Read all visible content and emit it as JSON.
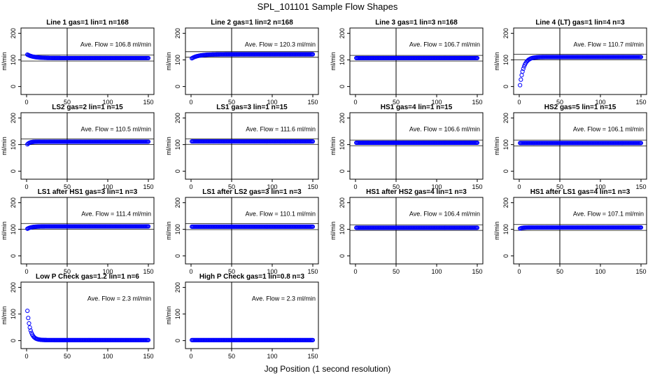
{
  "figure": {
    "title": "SPL_101101  Sample Flow Shapes",
    "xlabel": "Jog Position (1 second resolution)"
  },
  "chart_data": [
    {
      "type": "scatter",
      "title": "Line 1 gas=1 lin=1 n=168",
      "ylabel": "ml/min",
      "xlim": [
        0,
        150
      ],
      "ylim": [
        -30,
        220
      ],
      "xticks": [
        0,
        50,
        100,
        150
      ],
      "yticks": [
        0,
        100,
        200
      ],
      "vline": 50,
      "hlines": [
        96,
        118
      ],
      "annotation": "Ave. Flow =  106.8  ml/min",
      "shape": {
        "kind": "decay",
        "start": 120,
        "level": 107,
        "rate": 0.13
      }
    },
    {
      "type": "scatter",
      "title": "Line 2 gas=1 lin=2 n=168",
      "ylabel": "ml/min",
      "xlim": [
        0,
        150
      ],
      "ylim": [
        -30,
        220
      ],
      "xticks": [
        0,
        50,
        100,
        150
      ],
      "yticks": [
        0,
        100,
        200
      ],
      "vline": 50,
      "hlines": [
        110,
        131
      ],
      "annotation": "Ave. Flow =  120.3  ml/min",
      "shape": {
        "kind": "decay",
        "start": 106,
        "level": 121,
        "rate": 0.12
      }
    },
    {
      "type": "scatter",
      "title": "Line 3 gas=1 lin=3 n=168",
      "ylabel": "ml/min",
      "xlim": [
        0,
        150
      ],
      "ylim": [
        -30,
        220
      ],
      "xticks": [
        0,
        50,
        100,
        150
      ],
      "yticks": [
        0,
        100,
        200
      ],
      "vline": 50,
      "hlines": [
        96,
        117
      ],
      "annotation": "Ave. Flow =  106.7  ml/min",
      "shape": {
        "kind": "flat",
        "level": 107
      }
    },
    {
      "type": "scatter",
      "title": "Line 4 (LT) gas=1 lin=4 n=3",
      "ylabel": "ml/min",
      "xlim": [
        0,
        150
      ],
      "ylim": [
        -30,
        220
      ],
      "xticks": [
        0,
        50,
        100,
        150
      ],
      "yticks": [
        0,
        100,
        200
      ],
      "vline": 50,
      "hlines": [
        100,
        121
      ],
      "annotation": "Ave. Flow =  110.7  ml/min",
      "shape": {
        "kind": "decay",
        "start": 5,
        "level": 111,
        "rate": 0.22
      }
    },
    {
      "type": "scatter",
      "title": "LS2 gas=2 lin=1 n=15",
      "ylabel": "ml/min",
      "xlim": [
        0,
        150
      ],
      "ylim": [
        -30,
        220
      ],
      "xticks": [
        0,
        50,
        100,
        150
      ],
      "yticks": [
        0,
        100,
        200
      ],
      "vline": 50,
      "hlines": [
        100,
        121
      ],
      "annotation": "Ave. Flow =  110.5  ml/min",
      "shape": {
        "kind": "decay",
        "start": 101,
        "level": 111,
        "rate": 0.35
      }
    },
    {
      "type": "scatter",
      "title": "LS1 gas=3 lin=1 n=15",
      "ylabel": "ml/min",
      "xlim": [
        0,
        150
      ],
      "ylim": [
        -30,
        220
      ],
      "xticks": [
        0,
        50,
        100,
        150
      ],
      "yticks": [
        0,
        100,
        200
      ],
      "vline": 50,
      "hlines": [
        101,
        122
      ],
      "annotation": "Ave. Flow =  111.6  ml/min",
      "shape": {
        "kind": "flat",
        "level": 112
      }
    },
    {
      "type": "scatter",
      "title": "HS1 gas=4 lin=1 n=15",
      "ylabel": "ml/min",
      "xlim": [
        0,
        150
      ],
      "ylim": [
        -30,
        220
      ],
      "xticks": [
        0,
        50,
        100,
        150
      ],
      "yticks": [
        0,
        100,
        200
      ],
      "vline": 50,
      "hlines": [
        96,
        117
      ],
      "annotation": "Ave. Flow =  106.6  ml/min",
      "shape": {
        "kind": "flat",
        "level": 107
      }
    },
    {
      "type": "scatter",
      "title": "HS2 gas=5 lin=1 n=15",
      "ylabel": "ml/min",
      "xlim": [
        0,
        150
      ],
      "ylim": [
        -30,
        220
      ],
      "xticks": [
        0,
        50,
        100,
        150
      ],
      "yticks": [
        0,
        100,
        200
      ],
      "vline": 50,
      "hlines": [
        95,
        117
      ],
      "annotation": "Ave. Flow =  106.1  ml/min",
      "shape": {
        "kind": "flat",
        "level": 106
      }
    },
    {
      "type": "scatter",
      "title": "LS1 after HS1 gas=3 lin=1 n=3",
      "ylabel": "ml/min",
      "xlim": [
        0,
        150
      ],
      "ylim": [
        -30,
        220
      ],
      "xticks": [
        0,
        50,
        100,
        150
      ],
      "yticks": [
        0,
        100,
        200
      ],
      "vline": 50,
      "hlines": [
        100,
        122
      ],
      "annotation": "Ave. Flow =  111.4  ml/min",
      "shape": {
        "kind": "decay",
        "start": 102,
        "level": 111,
        "rate": 0.2
      }
    },
    {
      "type": "scatter",
      "title": "LS1 after LS2 gas=3 lin=1 n=3",
      "ylabel": "ml/min",
      "xlim": [
        0,
        150
      ],
      "ylim": [
        -30,
        220
      ],
      "xticks": [
        0,
        50,
        100,
        150
      ],
      "yticks": [
        0,
        100,
        200
      ],
      "vline": 50,
      "hlines": [
        99,
        121
      ],
      "annotation": "Ave. Flow =  110.1  ml/min",
      "shape": {
        "kind": "flat",
        "level": 110
      }
    },
    {
      "type": "scatter",
      "title": "HS1 after HS2 gas=4 lin=1 n=3",
      "ylabel": "ml/min",
      "xlim": [
        0,
        150
      ],
      "ylim": [
        -30,
        220
      ],
      "xticks": [
        0,
        50,
        100,
        150
      ],
      "yticks": [
        0,
        100,
        200
      ],
      "vline": 50,
      "hlines": [
        96,
        117
      ],
      "annotation": "Ave. Flow =  106.4  ml/min",
      "shape": {
        "kind": "flat",
        "level": 106
      }
    },
    {
      "type": "scatter",
      "title": "HS1 after LS1 gas=4 lin=1 n=3",
      "ylabel": "ml/min",
      "xlim": [
        0,
        150
      ],
      "ylim": [
        -30,
        220
      ],
      "xticks": [
        0,
        50,
        100,
        150
      ],
      "yticks": [
        0,
        100,
        200
      ],
      "vline": 50,
      "hlines": [
        96,
        118
      ],
      "annotation": "Ave. Flow =  107.1  ml/min",
      "shape": {
        "kind": "decay",
        "start": 103,
        "level": 107,
        "rate": 0.3
      }
    },
    {
      "type": "scatter",
      "title": "Low P Check gas=1.2 lin=1 n=6",
      "ylabel": "ml/min",
      "xlim": [
        0,
        150
      ],
      "ylim": [
        -30,
        220
      ],
      "xticks": [
        0,
        50,
        100,
        150
      ],
      "yticks": [
        0,
        100,
        200
      ],
      "vline": 50,
      "hlines": [],
      "annotation": "Ave. Flow =  2.3  ml/min",
      "shape": {
        "kind": "decay",
        "start": 112,
        "level": 2,
        "rate": 0.28
      }
    },
    {
      "type": "scatter",
      "title": "High P Check gas=1 lin=0.8 n=3",
      "ylabel": "ml/min",
      "xlim": [
        0,
        150
      ],
      "ylim": [
        -30,
        220
      ],
      "xticks": [
        0,
        50,
        100,
        150
      ],
      "yticks": [
        0,
        100,
        200
      ],
      "vline": 50,
      "hlines": [],
      "annotation": "Ave. Flow =  2.3  ml/min",
      "shape": {
        "kind": "flat",
        "level": 2
      }
    }
  ],
  "colors": {
    "points": "#0000ff",
    "axis": "#000000"
  }
}
